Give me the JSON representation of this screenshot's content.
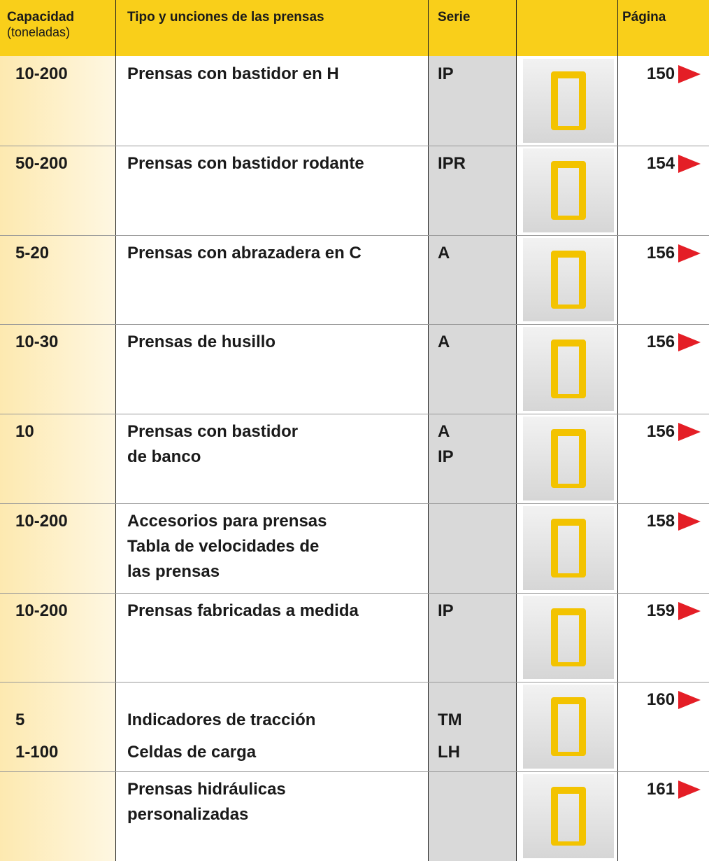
{
  "header": {
    "capacity": "Capacidad",
    "capacity_unit": "(toneladas)",
    "type": "Tipo y unciones de las prensas",
    "series": "Serie",
    "page": "Página"
  },
  "rows": [
    {
      "capacity": [
        "10-200"
      ],
      "type": [
        "Prensas con bastidor en H"
      ],
      "series": [
        "IP"
      ],
      "page": "150"
    },
    {
      "capacity": [
        "50-200"
      ],
      "type": [
        "Prensas con bastidor rodante"
      ],
      "series": [
        "IPR"
      ],
      "page": "154"
    },
    {
      "capacity": [
        "5-20"
      ],
      "type": [
        "Prensas con abrazadera en C"
      ],
      "series": [
        "A"
      ],
      "page": "156"
    },
    {
      "capacity": [
        "10-30"
      ],
      "type": [
        "Prensas de husillo"
      ],
      "series": [
        "A"
      ],
      "page": "156"
    },
    {
      "capacity": [
        "10"
      ],
      "type": [
        "Prensas con bastidor",
        "de banco"
      ],
      "series": [
        "A",
        "IP"
      ],
      "page": "156"
    },
    {
      "capacity": [
        "10-200"
      ],
      "type": [
        "Accesorios para prensas",
        "Tabla de velocidades de",
        "las prensas"
      ],
      "series": [],
      "page": "158"
    },
    {
      "capacity": [
        "10-200"
      ],
      "type": [
        "Prensas fabricadas a medida"
      ],
      "series": [
        "IP"
      ],
      "page": "159"
    },
    {
      "capacity": [
        "5",
        "1-100"
      ],
      "type": [
        "Indicadores de tracción",
        "Celdas de carga"
      ],
      "series": [
        "TM",
        "LH"
      ],
      "page": "160"
    },
    {
      "capacity": [],
      "type": [
        "Prensas hidráulicas",
        "personalizadas"
      ],
      "series": [],
      "page": "161"
    }
  ]
}
